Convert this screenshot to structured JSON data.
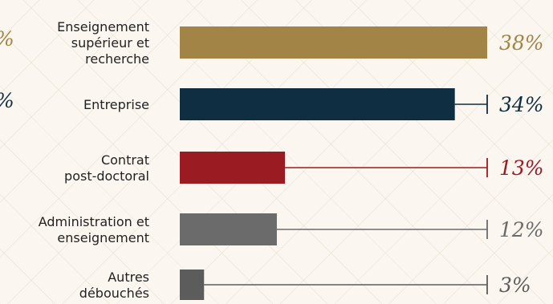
{
  "chart_data": {
    "type": "bar",
    "orientation": "horizontal",
    "categories": [
      [
        "Enseignement",
        "supérieur et",
        "recherche"
      ],
      [
        "Entreprise"
      ],
      [
        "Contrat",
        "post-doctoral"
      ],
      [
        "Administration et",
        "enseignement"
      ],
      [
        "Autres",
        "débouchés"
      ]
    ],
    "values": [
      38,
      34,
      13,
      12,
      3
    ],
    "value_labels": [
      "38%",
      "34%",
      "13%",
      "12%",
      "3%"
    ],
    "colors": [
      "#a18446",
      "#0f2e42",
      "#9b1b22",
      "#6b6b6b",
      "#5c5c5c"
    ],
    "xlim": [
      0,
      38
    ],
    "left_edge_fragments": [
      "%",
      "%"
    ]
  }
}
